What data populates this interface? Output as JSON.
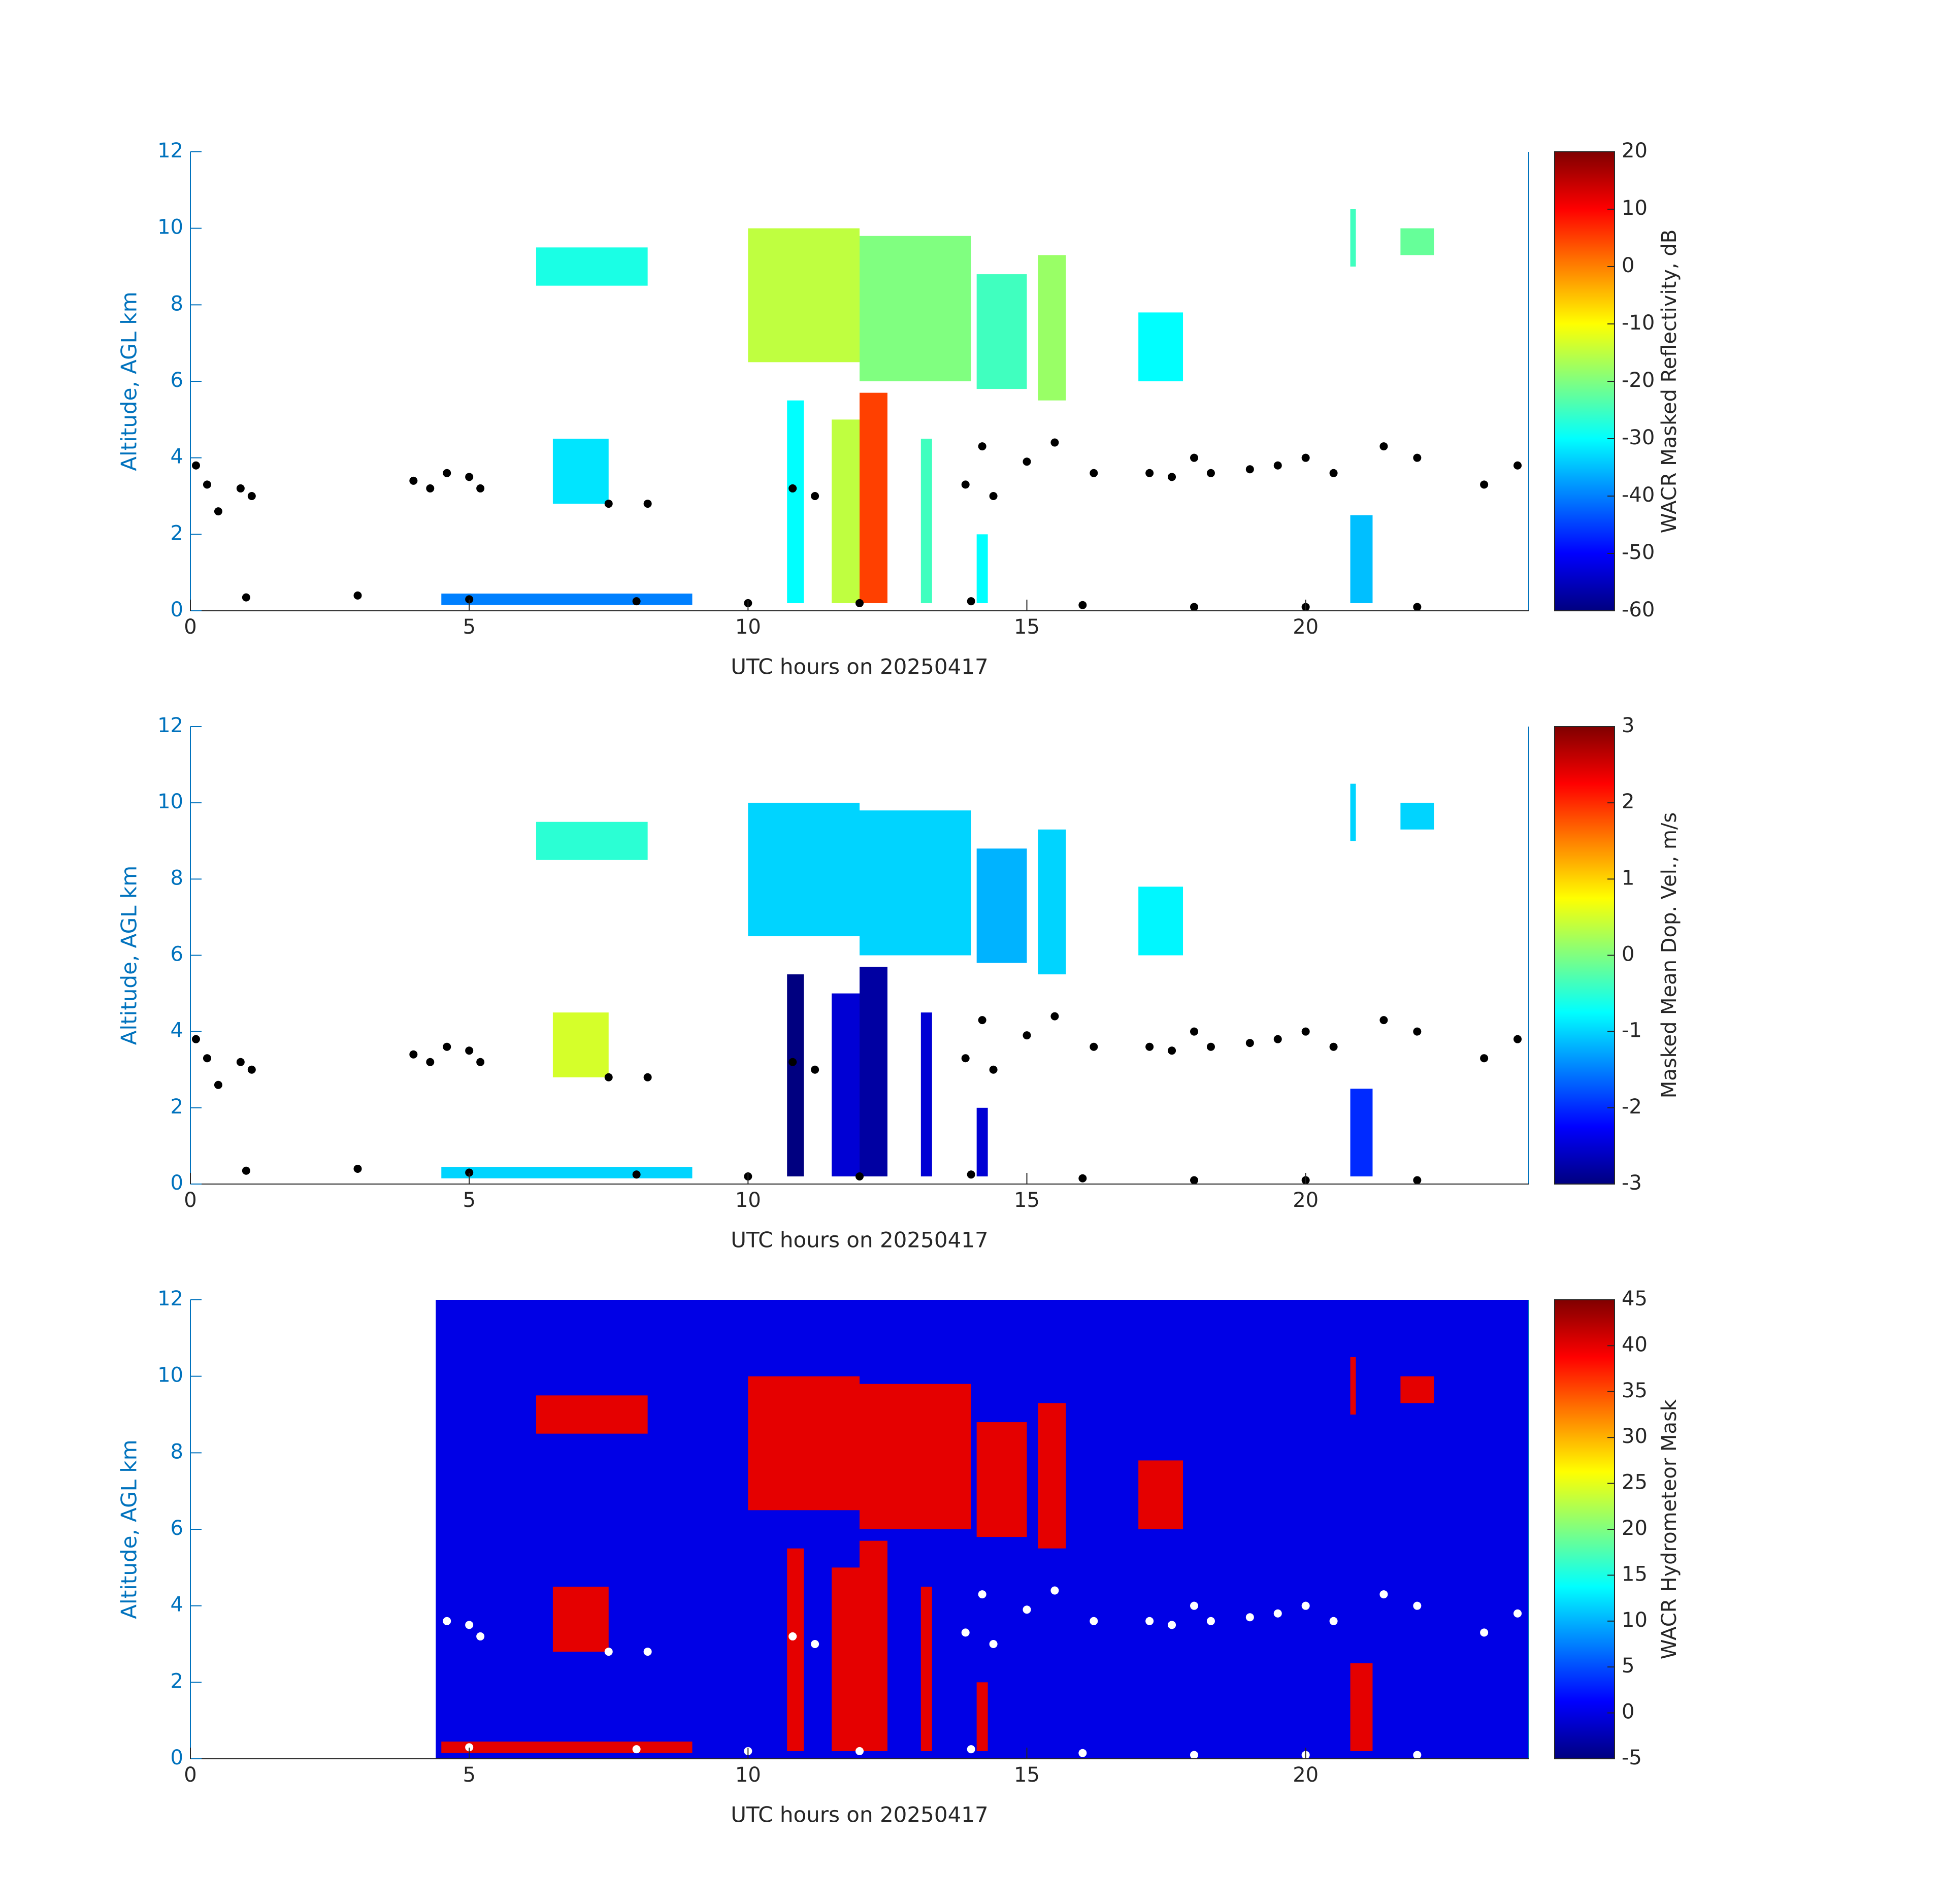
{
  "chart_data": [
    {
      "type": "heatmap",
      "xlabel": "UTC hours on 20250417",
      "ylabel": "Altitude, AGL km",
      "xlim": [
        0,
        24
      ],
      "ylim": [
        0,
        12
      ],
      "xticks": [
        0,
        5,
        10,
        15,
        20
      ],
      "yticks": [
        0,
        2,
        4,
        6,
        8,
        10,
        12
      ],
      "colormap": "jet",
      "colorbar_label": "WACR Masked Reflectivity, dB",
      "clim": [
        -60,
        20
      ],
      "cticks": [
        -60,
        -50,
        -40,
        -30,
        -20,
        -10,
        0,
        10,
        20
      ],
      "regions": [
        {
          "x": [
            6.2,
            8.2
          ],
          "y": [
            8.5,
            9.5
          ],
          "value": -28
        },
        {
          "x": [
            10,
            12
          ],
          "y": [
            6.5,
            10
          ],
          "value": -15
        },
        {
          "x": [
            12,
            14
          ],
          "y": [
            6,
            9.8
          ],
          "value": -20
        },
        {
          "x": [
            14.1,
            15
          ],
          "y": [
            5.8,
            8.8
          ],
          "value": -25
        },
        {
          "x": [
            15.2,
            15.7
          ],
          "y": [
            5.5,
            9.3
          ],
          "value": -18
        },
        {
          "x": [
            17,
            17.8
          ],
          "y": [
            6,
            7.8
          ],
          "value": -30
        },
        {
          "x": [
            20.8,
            20.9
          ],
          "y": [
            9,
            10.5
          ],
          "value": -25
        },
        {
          "x": [
            21.7,
            22.3
          ],
          "y": [
            9.3,
            10
          ],
          "value": -22
        },
        {
          "x": [
            6.5,
            7.5
          ],
          "y": [
            2.8,
            4.5
          ],
          "value": -32
        },
        {
          "x": [
            10.7,
            11
          ],
          "y": [
            0.2,
            5.5
          ],
          "value": -30
        },
        {
          "x": [
            11.5,
            12
          ],
          "y": [
            0.2,
            5
          ],
          "value": -15
        },
        {
          "x": [
            12,
            12.5
          ],
          "y": [
            0.2,
            5.7
          ],
          "value": 5
        },
        {
          "x": [
            13.1,
            13.3
          ],
          "y": [
            0.2,
            4.5
          ],
          "value": -25
        },
        {
          "x": [
            14.1,
            14.3
          ],
          "y": [
            0.2,
            2
          ],
          "value": -30
        },
        {
          "x": [
            20.8,
            21.2
          ],
          "y": [
            0.2,
            2.5
          ],
          "value": -35
        },
        {
          "x": [
            4.5,
            9
          ],
          "y": [
            0.15,
            0.45
          ],
          "value": -40
        }
      ],
      "points": {
        "color": "#000000",
        "x": [
          0.1,
          0.3,
          0.5,
          0.9,
          1.1,
          4.0,
          4.3,
          4.6,
          5.0,
          5.2,
          7.5,
          8.2,
          10.8,
          11.2,
          13.9,
          14.2,
          14.4,
          15.0,
          15.5,
          16.2,
          17.2,
          17.6,
          18.0,
          18.3,
          19.0,
          19.5,
          20.0,
          20.5,
          21.4,
          22.0,
          23.2,
          23.8,
          1,
          3,
          5,
          8,
          10,
          12,
          14,
          16,
          18,
          20,
          22
        ],
        "y": [
          3.8,
          3.3,
          2.6,
          3.2,
          3.0,
          3.4,
          3.2,
          3.6,
          3.5,
          3.2,
          2.8,
          2.8,
          3.2,
          3.0,
          3.3,
          4.3,
          3.0,
          3.9,
          4.4,
          3.6,
          3.6,
          3.5,
          4.0,
          3.6,
          3.7,
          3.8,
          4.0,
          3.6,
          4.3,
          4.0,
          3.3,
          3.8,
          0.35,
          0.4,
          0.3,
          0.25,
          0.2,
          0.2,
          0.25,
          0.15,
          0.1,
          0.1,
          0.1
        ]
      }
    },
    {
      "type": "heatmap",
      "xlabel": "UTC hours on 20250417",
      "ylabel": "Altitude, AGL km",
      "xlim": [
        0,
        24
      ],
      "ylim": [
        0,
        12
      ],
      "xticks": [
        0,
        5,
        10,
        15,
        20
      ],
      "yticks": [
        0,
        2,
        4,
        6,
        8,
        10,
        12
      ],
      "colormap": "jet",
      "colorbar_label": "Masked Mean Dop. Vel., m/s",
      "clim": [
        -3,
        3
      ],
      "cticks": [
        -3,
        -2,
        -1,
        0,
        1,
        2,
        3
      ],
      "regions": [
        {
          "x": [
            6.2,
            8.2
          ],
          "y": [
            8.5,
            9.5
          ],
          "value": -0.5
        },
        {
          "x": [
            10,
            12
          ],
          "y": [
            6.5,
            10
          ],
          "value": -1
        },
        {
          "x": [
            12,
            14
          ],
          "y": [
            6,
            9.8
          ],
          "value": -1
        },
        {
          "x": [
            14.1,
            15
          ],
          "y": [
            5.8,
            8.8
          ],
          "value": -1.2
        },
        {
          "x": [
            15.2,
            15.7
          ],
          "y": [
            5.5,
            9.3
          ],
          "value": -1
        },
        {
          "x": [
            17,
            17.8
          ],
          "y": [
            6,
            7.8
          ],
          "value": -0.8
        },
        {
          "x": [
            20.8,
            20.9
          ],
          "y": [
            9,
            10.5
          ],
          "value": -1
        },
        {
          "x": [
            21.7,
            22.3
          ],
          "y": [
            9.3,
            10
          ],
          "value": -1
        },
        {
          "x": [
            6.5,
            7.5
          ],
          "y": [
            2.8,
            4.5
          ],
          "value": 0.5
        },
        {
          "x": [
            10.7,
            11
          ],
          "y": [
            0.2,
            5.5
          ],
          "value": -3
        },
        {
          "x": [
            11.5,
            12
          ],
          "y": [
            0.2,
            5
          ],
          "value": -2.5
        },
        {
          "x": [
            12,
            12.5
          ],
          "y": [
            0.2,
            5.7
          ],
          "value": -2.8
        },
        {
          "x": [
            13.1,
            13.3
          ],
          "y": [
            0.2,
            4.5
          ],
          "value": -2.5
        },
        {
          "x": [
            14.1,
            14.3
          ],
          "y": [
            0.2,
            2
          ],
          "value": -2.5
        },
        {
          "x": [
            20.8,
            21.2
          ],
          "y": [
            0.2,
            2.5
          ],
          "value": -2
        },
        {
          "x": [
            4.5,
            9
          ],
          "y": [
            0.15,
            0.45
          ],
          "value": -1
        }
      ],
      "points": {
        "color": "#000000",
        "x": [
          0.1,
          0.3,
          0.5,
          0.9,
          1.1,
          4.0,
          4.3,
          4.6,
          5.0,
          5.2,
          7.5,
          8.2,
          10.8,
          11.2,
          13.9,
          14.2,
          14.4,
          15.0,
          15.5,
          16.2,
          17.2,
          17.6,
          18.0,
          18.3,
          19.0,
          19.5,
          20.0,
          20.5,
          21.4,
          22.0,
          23.2,
          23.8,
          1,
          3,
          5,
          8,
          10,
          12,
          14,
          16,
          18,
          20,
          22
        ],
        "y": [
          3.8,
          3.3,
          2.6,
          3.2,
          3.0,
          3.4,
          3.2,
          3.6,
          3.5,
          3.2,
          2.8,
          2.8,
          3.2,
          3.0,
          3.3,
          4.3,
          3.0,
          3.9,
          4.4,
          3.6,
          3.6,
          3.5,
          4.0,
          3.6,
          3.7,
          3.8,
          4.0,
          3.6,
          4.3,
          4.0,
          3.3,
          3.8,
          0.35,
          0.4,
          0.3,
          0.25,
          0.2,
          0.2,
          0.25,
          0.15,
          0.1,
          0.1,
          0.1
        ]
      }
    },
    {
      "type": "heatmap",
      "xlabel": "UTC hours on 20250417",
      "ylabel": "Altitude, AGL km",
      "xlim": [
        0,
        24
      ],
      "ylim": [
        0,
        12
      ],
      "xticks": [
        0,
        5,
        10,
        15,
        20
      ],
      "yticks": [
        0,
        2,
        4,
        6,
        8,
        10,
        12
      ],
      "colormap": "jet",
      "colorbar_label": "WACR Hydrometeor Mask",
      "clim": [
        -5,
        45
      ],
      "cticks": [
        -5,
        0,
        5,
        10,
        15,
        20,
        25,
        30,
        35,
        40,
        45
      ],
      "regions": [
        {
          "x": [
            4.4,
            24
          ],
          "y": [
            0,
            12
          ],
          "value": 0
        },
        {
          "x": [
            6.2,
            8.2
          ],
          "y": [
            8.5,
            9.5
          ],
          "value": 40
        },
        {
          "x": [
            10,
            12
          ],
          "y": [
            6.5,
            10
          ],
          "value": 40
        },
        {
          "x": [
            12,
            14
          ],
          "y": [
            6,
            9.8
          ],
          "value": 40
        },
        {
          "x": [
            14.1,
            15
          ],
          "y": [
            5.8,
            8.8
          ],
          "value": 40
        },
        {
          "x": [
            15.2,
            15.7
          ],
          "y": [
            5.5,
            9.3
          ],
          "value": 40
        },
        {
          "x": [
            17,
            17.8
          ],
          "y": [
            6,
            7.8
          ],
          "value": 40
        },
        {
          "x": [
            20.8,
            20.9
          ],
          "y": [
            9,
            10.5
          ],
          "value": 40
        },
        {
          "x": [
            21.7,
            22.3
          ],
          "y": [
            9.3,
            10
          ],
          "value": 40
        },
        {
          "x": [
            6.5,
            7.5
          ],
          "y": [
            2.8,
            4.5
          ],
          "value": 40
        },
        {
          "x": [
            10.7,
            11
          ],
          "y": [
            0.2,
            5.5
          ],
          "value": 40
        },
        {
          "x": [
            11.5,
            12
          ],
          "y": [
            0.2,
            5
          ],
          "value": 40
        },
        {
          "x": [
            12,
            12.5
          ],
          "y": [
            0.2,
            5.7
          ],
          "value": 40
        },
        {
          "x": [
            13.1,
            13.3
          ],
          "y": [
            0.2,
            4.5
          ],
          "value": 40
        },
        {
          "x": [
            14.1,
            14.3
          ],
          "y": [
            0.2,
            2
          ],
          "value": 40
        },
        {
          "x": [
            20.8,
            21.2
          ],
          "y": [
            0.2,
            2.5
          ],
          "value": 40
        },
        {
          "x": [
            4.5,
            9
          ],
          "y": [
            0.15,
            0.45
          ],
          "value": 40
        }
      ],
      "points": {
        "color": "#ffffff",
        "x": [
          4.6,
          5.0,
          5.2,
          7.5,
          8.2,
          10.8,
          11.2,
          13.9,
          14.2,
          14.4,
          15.0,
          15.5,
          16.2,
          17.2,
          17.6,
          18.0,
          18.3,
          19.0,
          19.5,
          20.0,
          20.5,
          21.4,
          22.0,
          23.2,
          23.8,
          5,
          8,
          10,
          12,
          14,
          16,
          18,
          20,
          22
        ],
        "y": [
          3.6,
          3.5,
          3.2,
          2.8,
          2.8,
          3.2,
          3.0,
          3.3,
          4.3,
          3.0,
          3.9,
          4.4,
          3.6,
          3.6,
          3.5,
          4.0,
          3.6,
          3.7,
          3.8,
          4.0,
          3.6,
          4.3,
          4.0,
          3.3,
          3.8,
          0.3,
          0.25,
          0.2,
          0.2,
          0.25,
          0.15,
          0.1,
          0.1,
          0.1
        ]
      }
    }
  ]
}
